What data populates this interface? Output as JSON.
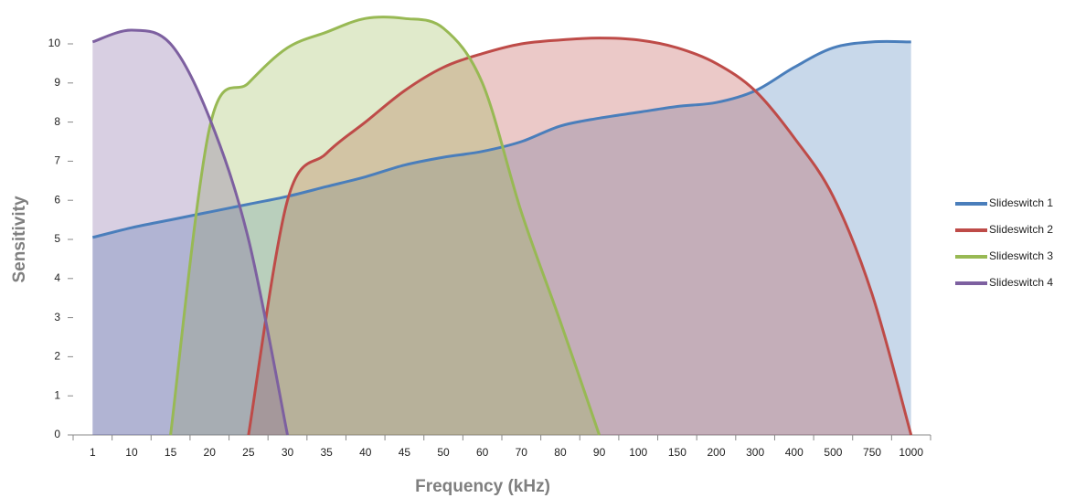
{
  "chart_data": {
    "type": "area",
    "x_label": "Frequency (kHz)",
    "y_label": "Sensitivity",
    "categories": [
      "1",
      "10",
      "15",
      "20",
      "25",
      "30",
      "35",
      "40",
      "45",
      "50",
      "60",
      "70",
      "80",
      "90",
      "100",
      "150",
      "200",
      "300",
      "400",
      "500",
      "750",
      "1000"
    ],
    "ylim": [
      0,
      11
    ],
    "yticks": [
      0,
      1,
      2,
      3,
      4,
      5,
      6,
      7,
      8,
      9,
      10
    ],
    "legend": "right",
    "series": [
      {
        "name": "Slideswitch 1",
        "color": "#4a7ebb",
        "values": [
          5.05,
          5.3,
          5.5,
          5.7,
          5.9,
          6.1,
          6.35,
          6.6,
          6.9,
          7.1,
          7.25,
          7.5,
          7.9,
          8.1,
          8.25,
          8.4,
          8.5,
          8.8,
          9.4,
          9.9,
          10.05,
          10.05
        ]
      },
      {
        "name": "Slideswitch 2",
        "color": "#be4b48",
        "values": [
          null,
          null,
          null,
          null,
          0,
          6.0,
          7.2,
          8.0,
          8.8,
          9.4,
          9.75,
          10.0,
          10.1,
          10.15,
          10.1,
          9.9,
          9.5,
          8.8,
          7.6,
          6.1,
          3.6,
          0
        ]
      },
      {
        "name": "Slideswitch 3",
        "color": "#98b954",
        "values": [
          null,
          null,
          0,
          7.85,
          9.0,
          9.9,
          10.3,
          10.65,
          10.65,
          10.4,
          9.0,
          5.7,
          2.9,
          0,
          null,
          null,
          null,
          null,
          null,
          null,
          null,
          null
        ]
      },
      {
        "name": "Slideswitch 4",
        "color": "#7d60a0",
        "values": [
          10.05,
          10.35,
          10.0,
          8.1,
          5.0,
          0,
          null,
          null,
          null,
          null,
          null,
          null,
          null,
          null,
          null,
          null,
          null,
          null,
          null,
          null,
          null,
          null
        ]
      }
    ]
  }
}
